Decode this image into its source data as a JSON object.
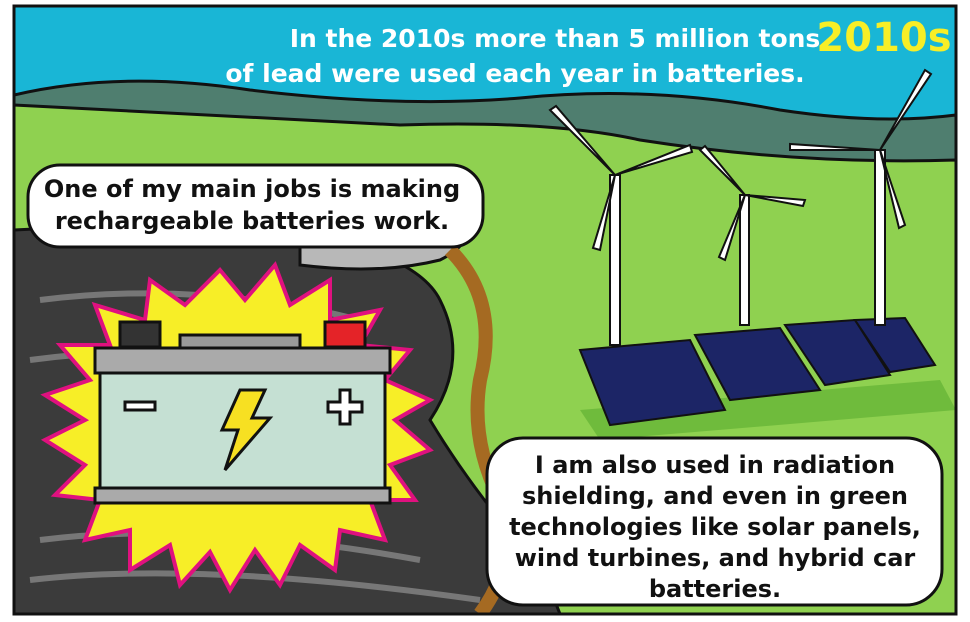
{
  "header": {
    "lines": [
      "In the 2010s more than 5 million tons",
      "of lead were used each year in batteries."
    ],
    "badge": "2010s"
  },
  "bubbles": [
    {
      "lines": [
        "One of my main jobs is making",
        "rechargeable batteries work."
      ]
    },
    {
      "lines": [
        "I am also used in radiation",
        "shielding, and even in green",
        "technologies like solar panels,",
        "wind turbines, and hybrid car",
        "batteries."
      ]
    }
  ]
}
